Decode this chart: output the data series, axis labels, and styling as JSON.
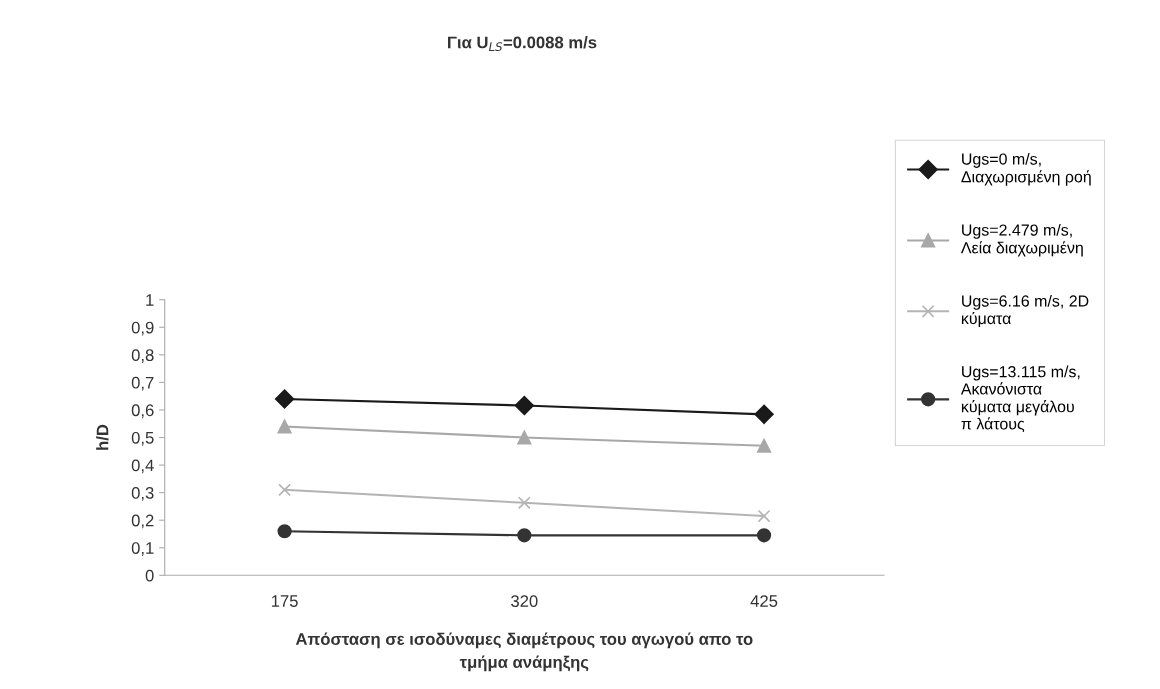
{
  "chart_data": {
    "type": "line",
    "title": "Για U$_{LS}$=0.0088 m/s",
    "xlabel": "Απόσταση σε ισοδύναμες διαμέτρους του αγωγού απο το\nτμήμα ανάμηξης",
    "ylabel": "h/D",
    "categories": [
      "175",
      "320",
      "425"
    ],
    "series": [
      {
        "name": "Ugs=0 m/s,\nΔιαχωρισμένη ροή",
        "color": "#1a1a1a",
        "marker": "diamond",
        "values": [
          0.64,
          0.616,
          0.584
        ]
      },
      {
        "name": "Ugs=2.479 m/s,\nΛεία διαχωριμένη",
        "color": "#a8a8a8",
        "marker": "triangle",
        "values": [
          0.54,
          0.5,
          0.47
        ]
      },
      {
        "name": "Ugs=6.16 m/s, 2D\nκύματα",
        "color": "#b4b4b4",
        "marker": "cross",
        "values": [
          0.31,
          0.263,
          0.215
        ]
      },
      {
        "name": "Ugs=13.115 m/s,\nΑκανόνιστα\nκύματα μεγάλου\nπ λάτους",
        "color": "#333333",
        "marker": "circle",
        "values": [
          0.16,
          0.145,
          0.145
        ]
      }
    ],
    "ylim": [
      0,
      1
    ],
    "yticks": [
      {
        "value": 0,
        "label": "0"
      },
      {
        "value": 0.1,
        "label": "0,1"
      },
      {
        "value": 0.2,
        "label": "0,2"
      },
      {
        "value": 0.3,
        "label": "0,3"
      },
      {
        "value": 0.4,
        "label": "0,4"
      },
      {
        "value": 0.5,
        "label": "0,5"
      },
      {
        "value": 0.6,
        "label": "0,6"
      },
      {
        "value": 0.7,
        "label": "0,7"
      },
      {
        "value": 0.8,
        "label": "0,8"
      },
      {
        "value": 0.9,
        "label": "0,9"
      },
      {
        "value": 1,
        "label": "1"
      }
    ],
    "legend": "right",
    "grid": false
  }
}
